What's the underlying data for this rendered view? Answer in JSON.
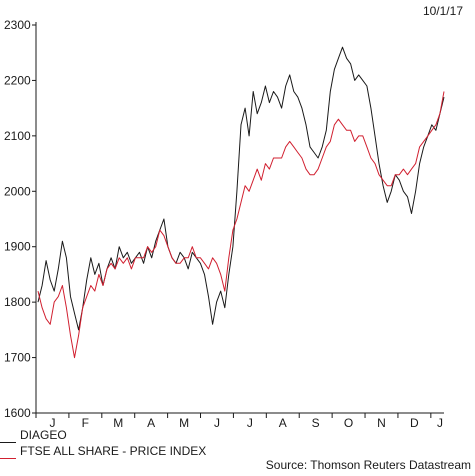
{
  "date_label": "10/1/17",
  "source": "Source: Thomson Reuters Datastream",
  "colors": {
    "diageo": "#1a1a1a",
    "ftse": "#d12030",
    "axis": "#1a1a1a"
  },
  "chart_data": {
    "type": "line",
    "title": "",
    "xlabel": "",
    "ylabel": "",
    "ylim": [
      1600,
      2300
    ],
    "yticks": [
      1600,
      1700,
      1800,
      1900,
      2000,
      2100,
      2200,
      2300
    ],
    "xtick_labels": [
      "J",
      "F",
      "M",
      "A",
      "M",
      "J",
      "J",
      "A",
      "S",
      "O",
      "N",
      "D",
      "J"
    ],
    "legend_position": "bottom-left",
    "grid": false,
    "series": [
      {
        "name": "DIAGEO",
        "values": [
          1800,
          1830,
          1875,
          1840,
          1820,
          1860,
          1910,
          1880,
          1810,
          1780,
          1750,
          1790,
          1840,
          1880,
          1850,
          1870,
          1830,
          1860,
          1880,
          1860,
          1900,
          1880,
          1890,
          1870,
          1880,
          1890,
          1870,
          1900,
          1880,
          1910,
          1930,
          1950,
          1900,
          1880,
          1870,
          1890,
          1880,
          1860,
          1890,
          1880,
          1870,
          1850,
          1810,
          1760,
          1800,
          1820,
          1790,
          1850,
          1900,
          2000,
          2120,
          2150,
          2100,
          2180,
          2140,
          2160,
          2190,
          2160,
          2180,
          2170,
          2150,
          2190,
          2210,
          2180,
          2170,
          2150,
          2120,
          2080,
          2070,
          2060,
          2080,
          2110,
          2180,
          2220,
          2240,
          2260,
          2240,
          2230,
          2200,
          2210,
          2200,
          2190,
          2150,
          2100,
          2050,
          2010,
          1980,
          2000,
          2030,
          2020,
          2000,
          1990,
          1960,
          2000,
          2050,
          2080,
          2100,
          2120,
          2110,
          2140,
          2170
        ]
      },
      {
        "name": "FTSE ALL SHARE - PRICE INDEX",
        "values": [
          1820,
          1790,
          1770,
          1760,
          1800,
          1810,
          1830,
          1790,
          1740,
          1700,
          1740,
          1790,
          1810,
          1830,
          1820,
          1850,
          1830,
          1860,
          1870,
          1860,
          1880,
          1870,
          1880,
          1860,
          1880,
          1880,
          1880,
          1900,
          1890,
          1900,
          1930,
          1920,
          1900,
          1880,
          1870,
          1870,
          1880,
          1880,
          1900,
          1880,
          1880,
          1870,
          1860,
          1880,
          1870,
          1850,
          1820,
          1880,
          1930,
          1950,
          1980,
          2010,
          2000,
          2020,
          2040,
          2020,
          2050,
          2040,
          2060,
          2060,
          2060,
          2080,
          2090,
          2080,
          2070,
          2060,
          2040,
          2030,
          2030,
          2040,
          2060,
          2080,
          2090,
          2120,
          2130,
          2120,
          2110,
          2110,
          2090,
          2100,
          2100,
          2080,
          2060,
          2050,
          2030,
          2020,
          2010,
          2010,
          2030,
          2030,
          2040,
          2030,
          2040,
          2050,
          2080,
          2090,
          2100,
          2110,
          2120,
          2140,
          2180
        ]
      }
    ]
  }
}
